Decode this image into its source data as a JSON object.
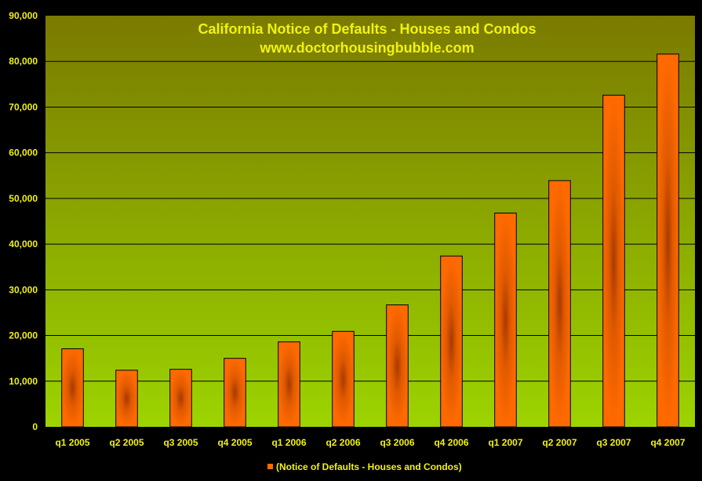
{
  "chart_data": {
    "type": "bar",
    "title": "California Notice of Defaults - Houses and Condos",
    "subtitle": "www.doctorhousingbubble.com",
    "categories": [
      "q1 2005",
      "q2 2005",
      "q3 2005",
      "q4 2005",
      "q1 2006",
      "q2 2006",
      "q3 2006",
      "q4 2006",
      "q1 2007",
      "q2 2007",
      "q3 2007",
      "q4 2007"
    ],
    "series": [
      {
        "name": "(Notice of Defaults - Houses and Condos)",
        "values": [
          17100,
          12400,
          12600,
          15000,
          18600,
          20900,
          26700,
          37400,
          46800,
          53900,
          72600,
          81600
        ],
        "color": "#ff6a00"
      }
    ],
    "yticks": [
      "0",
      "10,000",
      "20,000",
      "30,000",
      "40,000",
      "50,000",
      "60,000",
      "70,000",
      "80,000",
      "90,000"
    ],
    "ylim": [
      0,
      90000
    ],
    "xlabel": "",
    "ylabel": "",
    "grid": true,
    "legend_position": "bottom",
    "colors": {
      "background": "#000000",
      "plot_top": "#7a7a00",
      "plot_bottom": "#9cd400",
      "text": "#f2f20c",
      "bar": "#ff6a00",
      "bar_dark": "#a83a00"
    }
  }
}
